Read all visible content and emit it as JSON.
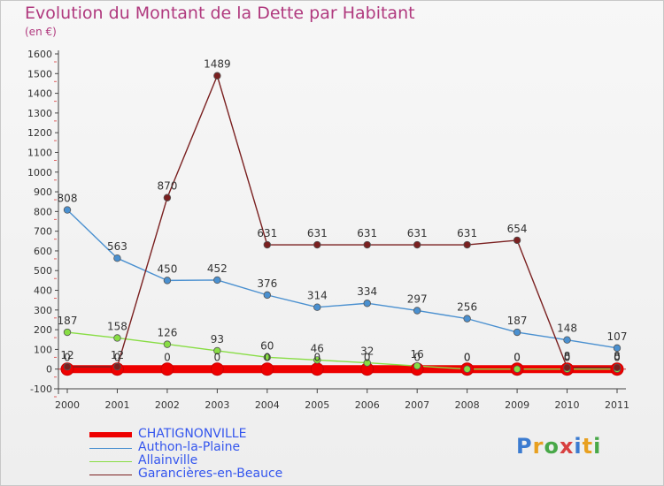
{
  "title": "Evolution du Montant de la Dette par Habitant",
  "unit": "(en €)",
  "logo_text": "Proxiti",
  "chart_data": {
    "type": "line",
    "x": [
      "2000",
      "2001",
      "2002",
      "2003",
      "2004",
      "2005",
      "2006",
      "2007",
      "2008",
      "2009",
      "2010",
      "2011"
    ],
    "ylim": [
      -100,
      1600
    ],
    "yticks": [
      -100,
      0,
      100,
      200,
      300,
      400,
      500,
      600,
      700,
      800,
      900,
      1000,
      1100,
      1200,
      1300,
      1400,
      1500,
      1600
    ],
    "grid": false,
    "legend_position": "bottom-left",
    "series": [
      {
        "name": "CHATIGNONVILLE",
        "color": "#ee0000",
        "values": [
          0,
          0,
          0,
          0,
          0,
          0,
          0,
          0,
          0,
          0,
          0,
          0
        ]
      },
      {
        "name": "Authon-la-Plaine",
        "color": "#4a90d0",
        "values": [
          808,
          563,
          450,
          452,
          376,
          314,
          334,
          297,
          256,
          187,
          148,
          107
        ]
      },
      {
        "name": "Allainville",
        "color": "#88dd44",
        "values": [
          187,
          158,
          126,
          93,
          60,
          46,
          32,
          16,
          0,
          0,
          0,
          0
        ]
      },
      {
        "name": "Garancières-en-Beauce",
        "color": "#7a2020",
        "values": [
          12,
          12,
          870,
          1489,
          631,
          631,
          631,
          631,
          631,
          654,
          8,
          8
        ]
      }
    ]
  }
}
